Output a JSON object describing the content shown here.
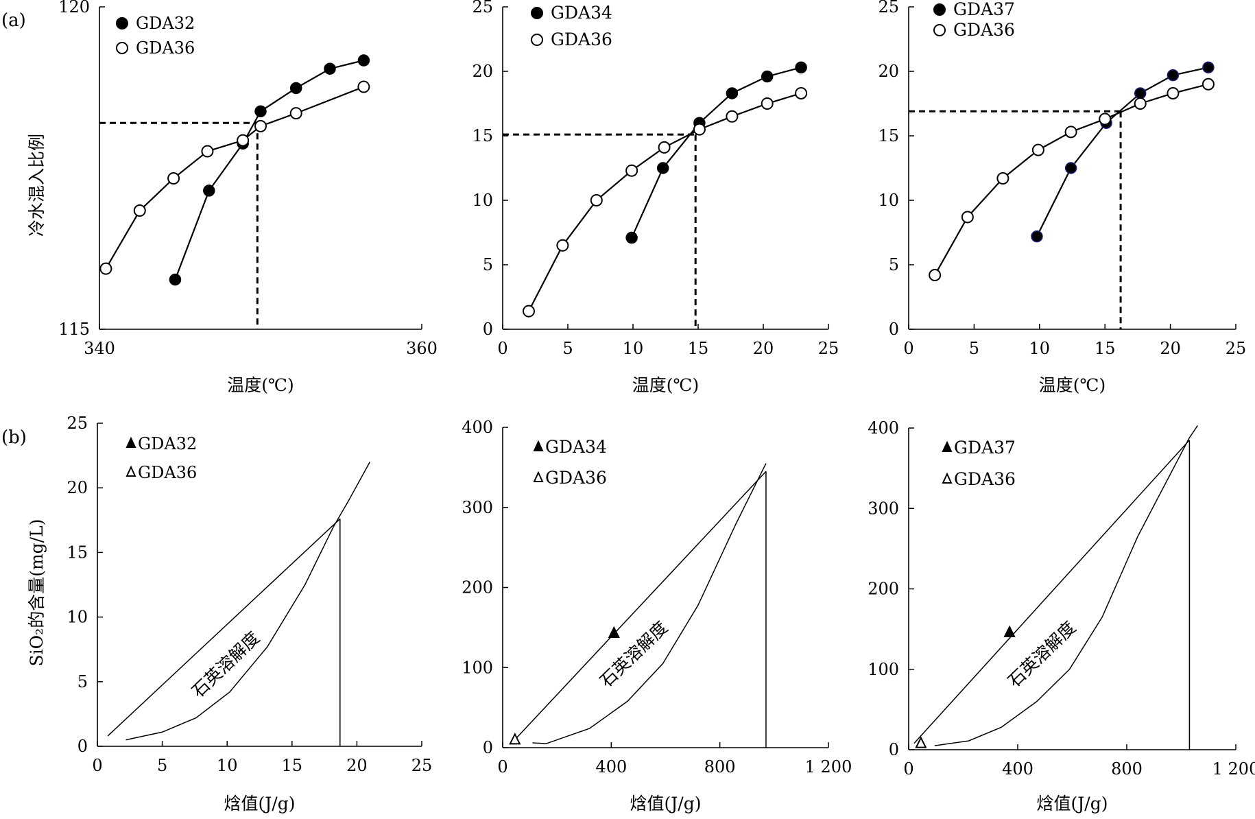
{
  "row_labels": {
    "a": "(a)",
    "b": "(b)"
  },
  "chart_data": [
    {
      "type": "line",
      "panel": "a1",
      "ylabel": "冷水混入比例",
      "xlabel": "温度(℃)",
      "xlim": [
        340,
        360
      ],
      "ylim": [
        115,
        120
      ],
      "xticks": [
        340,
        360
      ],
      "yticks": [
        115,
        120
      ],
      "tick_labels_x": [
        "340",
        "360"
      ],
      "tick_labels_y": [
        "115",
        "120"
      ],
      "series": [
        {
          "name": "GDA32",
          "marker": "filled-circle",
          "color": "#000000",
          "points": [
            [
              344.7,
              115.77
            ],
            [
              346.8,
              117.15
            ],
            [
              348.9,
              117.88
            ],
            [
              350.0,
              118.38
            ],
            [
              352.2,
              118.74
            ],
            [
              354.3,
              119.04
            ],
            [
              356.4,
              119.17
            ]
          ]
        },
        {
          "name": "GDA36",
          "marker": "open-circle",
          "color": "#000000",
          "points": [
            [
              340.4,
              115.94
            ],
            [
              342.5,
              116.84
            ],
            [
              344.6,
              117.34
            ],
            [
              346.7,
              117.76
            ],
            [
              348.9,
              117.93
            ],
            [
              350.0,
              118.15
            ],
            [
              352.2,
              118.35
            ],
            [
              356.4,
              118.76
            ]
          ]
        }
      ],
      "crossing": {
        "x": 349.8,
        "y": 118.2
      },
      "legend": [
        "GDA32",
        "GDA36"
      ],
      "legend_position": "top-left"
    },
    {
      "type": "line",
      "panel": "a2",
      "xlabel": "温度(℃)",
      "xlim": [
        0,
        25
      ],
      "ylim": [
        0,
        25
      ],
      "xticks": [
        0,
        5,
        10,
        15,
        20,
        25
      ],
      "yticks": [
        0,
        5,
        10,
        15,
        20,
        25
      ],
      "tick_labels_x": [
        "0",
        "5",
        "10",
        "15",
        "20",
        "25"
      ],
      "tick_labels_y": [
        "0",
        "5",
        "10",
        "15",
        "20",
        "25"
      ],
      "series": [
        {
          "name": "GDA34",
          "marker": "filled-circle",
          "color": "#000000",
          "points": [
            [
              9.9,
              7.1
            ],
            [
              12.3,
              12.5
            ],
            [
              15.1,
              16.0
            ],
            [
              17.6,
              18.3
            ],
            [
              20.3,
              19.6
            ],
            [
              22.9,
              20.3
            ]
          ]
        },
        {
          "name": "GDA36",
          "marker": "open-circle",
          "color": "#000000",
          "points": [
            [
              2.0,
              1.4
            ],
            [
              4.6,
              6.5
            ],
            [
              7.2,
              10.0
            ],
            [
              9.9,
              12.3
            ],
            [
              12.4,
              14.1
            ],
            [
              15.1,
              15.5
            ],
            [
              17.6,
              16.5
            ],
            [
              20.3,
              17.5
            ],
            [
              22.9,
              18.3
            ]
          ]
        }
      ],
      "crossing": {
        "x": 14.8,
        "y": 15.1
      },
      "legend": [
        "GDA34",
        "GDA36"
      ],
      "legend_position": "top-left"
    },
    {
      "type": "line",
      "panel": "a3",
      "xlabel": "温度(℃)",
      "xlim": [
        0,
        25
      ],
      "ylim": [
        0,
        25
      ],
      "xticks": [
        0,
        5,
        10,
        15,
        20,
        25
      ],
      "yticks": [
        0,
        5,
        10,
        15,
        20,
        25
      ],
      "tick_labels_x": [
        "0",
        "5",
        "10",
        "15",
        "20",
        "25"
      ],
      "tick_labels_y": [
        "0",
        "5",
        "10",
        "15",
        "20",
        "25"
      ],
      "series": [
        {
          "name": "GDA37",
          "marker": "filled-circle",
          "color": "#000000",
          "edge": "#1a237e",
          "points": [
            [
              9.8,
              7.2
            ],
            [
              12.4,
              12.5
            ],
            [
              15.1,
              16.0
            ],
            [
              17.7,
              18.3
            ],
            [
              20.2,
              19.7
            ],
            [
              22.9,
              20.3
            ]
          ]
        },
        {
          "name": "GDA36",
          "marker": "open-circle",
          "color": "#000000",
          "points": [
            [
              2.0,
              4.2
            ],
            [
              4.5,
              8.7
            ],
            [
              7.2,
              11.7
            ],
            [
              9.9,
              13.9
            ],
            [
              12.4,
              15.3
            ],
            [
              15.0,
              16.3
            ],
            [
              17.7,
              17.5
            ],
            [
              20.2,
              18.3
            ],
            [
              22.9,
              19.0
            ]
          ]
        }
      ],
      "crossing": {
        "x": 16.2,
        "y": 16.9
      },
      "legend": [
        "GDA37",
        "GDA36"
      ],
      "legend_position": "top-left"
    },
    {
      "type": "line",
      "panel": "b1",
      "ylabel": "SiO₂的含量(mg/L)",
      "xlabel": "焓值(J/g)",
      "xlim": [
        0,
        25
      ],
      "ylim": [
        0,
        25
      ],
      "xticks": [
        0,
        5,
        10,
        15,
        20,
        25
      ],
      "yticks": [
        0,
        5,
        10,
        15,
        20,
        25
      ],
      "tick_labels_x": [
        "0",
        "5",
        "10",
        "15",
        "20",
        "25"
      ],
      "tick_labels_y": [
        "0",
        "5",
        "10",
        "15",
        "20",
        "25"
      ],
      "solubility_curve": [
        [
          2.2,
          0.5
        ],
        [
          5.0,
          1.1
        ],
        [
          7.6,
          2.2
        ],
        [
          10.2,
          4.2
        ],
        [
          13.1,
          7.7
        ],
        [
          16.0,
          12.5
        ],
        [
          18.2,
          17.0
        ],
        [
          19.3,
          18.9
        ],
        [
          21.0,
          22.0
        ]
      ],
      "mixing_line": [
        [
          0.8,
          0.8
        ],
        [
          18.7,
          17.6
        ]
      ],
      "vertical_line": {
        "x": 18.7,
        "y_top": 17.6
      },
      "samples": [],
      "curve_label": "石英溶解度",
      "legend": [
        {
          "name": "GDA32",
          "marker": "filled-triangle"
        },
        {
          "name": "GDA36",
          "marker": "open-triangle"
        }
      ],
      "legend_position": "top-left"
    },
    {
      "type": "line",
      "panel": "b2",
      "xlabel": "焓值(J/g)",
      "xlim": [
        0,
        1200
      ],
      "ylim": [
        0,
        400
      ],
      "xticks": [
        0,
        400,
        800,
        1200
      ],
      "yticks": [
        0,
        100,
        200,
        300,
        400
      ],
      "tick_labels_x": [
        "0",
        "400",
        "800",
        "1 200"
      ],
      "tick_labels_y": [
        "0",
        "100",
        "200",
        "300",
        "400"
      ],
      "solubility_curve": [
        [
          110,
          6
        ],
        [
          160,
          5
        ],
        [
          320,
          24
        ],
        [
          460,
          58
        ],
        [
          590,
          105
        ],
        [
          720,
          178
        ],
        [
          860,
          280
        ],
        [
          970,
          355
        ]
      ],
      "mixing_line": [
        [
          45,
          10
        ],
        [
          970,
          345
        ]
      ],
      "vertical_line": {
        "x": 970,
        "y_top": 345
      },
      "samples": [
        {
          "name": "GDA34",
          "marker": "filled-triangle",
          "x": 410,
          "y": 143
        },
        {
          "name": "GDA36",
          "marker": "open-triangle",
          "x": 45,
          "y": 10
        }
      ],
      "curve_label": "石英溶解度",
      "legend": [
        {
          "name": "GDA34",
          "marker": "filled-triangle"
        },
        {
          "name": "GDA36",
          "marker": "open-triangle"
        }
      ],
      "legend_position": "top-left"
    },
    {
      "type": "line",
      "panel": "b3",
      "xlabel": "焓值(J/g)",
      "xlim": [
        0,
        1200
      ],
      "ylim": [
        0,
        400
      ],
      "xticks": [
        0,
        400,
        800,
        1200
      ],
      "yticks": [
        0,
        100,
        200,
        300,
        400
      ],
      "tick_labels_x": [
        "0",
        "400",
        "800",
        "1 200"
      ],
      "tick_labels_y": [
        "0",
        "100",
        "200",
        "300",
        "400"
      ],
      "solubility_curve": [
        [
          95,
          5
        ],
        [
          220,
          11
        ],
        [
          340,
          28
        ],
        [
          470,
          60
        ],
        [
          590,
          100
        ],
        [
          710,
          165
        ],
        [
          840,
          265
        ],
        [
          1030,
          388
        ],
        [
          1060,
          403
        ]
      ],
      "mixing_line": [
        [
          20,
          8
        ],
        [
          1030,
          385
        ]
      ],
      "vertical_line": {
        "x": 1030,
        "y_top": 385
      },
      "samples": [
        {
          "name": "GDA37",
          "marker": "filled-triangle",
          "x": 370,
          "y": 146
        },
        {
          "name": "GDA36",
          "marker": "open-triangle",
          "x": 45,
          "y": 8
        }
      ],
      "curve_label": "石英溶解度",
      "legend": [
        {
          "name": "GDA37",
          "marker": "filled-triangle"
        },
        {
          "name": "GDA36",
          "marker": "open-triangle"
        }
      ],
      "legend_position": "top-left"
    }
  ]
}
